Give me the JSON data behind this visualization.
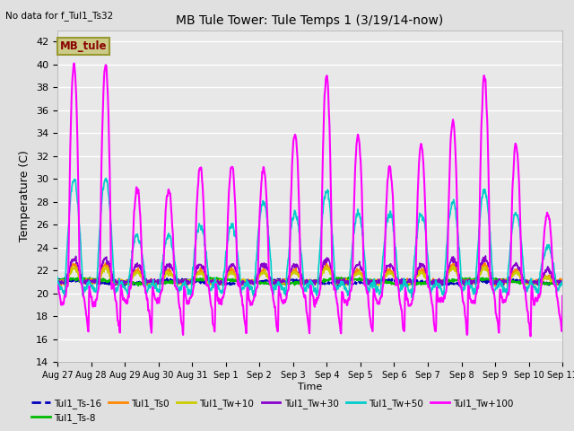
{
  "title": "MB Tule Tower: Tule Temps 1 (3/19/14-now)",
  "no_data_text": "No data for f_Tul1_Ts32",
  "xlabel": "Time",
  "ylabel": "Temperature (C)",
  "ylim": [
    14,
    43
  ],
  "yticks": [
    14,
    16,
    18,
    20,
    22,
    24,
    26,
    28,
    30,
    32,
    34,
    36,
    38,
    40,
    42
  ],
  "x_labels": [
    "Aug 27",
    "Aug 28",
    "Aug 29",
    "Aug 30",
    "Aug 31",
    "Sep 1",
    "Sep 2",
    "Sep 3",
    "Sep 4",
    "Sep 5",
    "Sep 6",
    "Sep 7",
    "Sep 8",
    "Sep 9",
    "Sep 10",
    "Sep 11"
  ],
  "bg_color": "#e0e0e0",
  "plot_bg_color": "#e8e8e8",
  "grid_color": "white",
  "series": [
    {
      "label": "Tul1_Ts-16",
      "color": "#0000bb",
      "lw": 1.5
    },
    {
      "label": "Tul1_Ts-8",
      "color": "#00bb00",
      "lw": 1.2
    },
    {
      "label": "Tul1_Ts0",
      "color": "#ff8800",
      "lw": 1.2
    },
    {
      "label": "Tul1_Tw+10",
      "color": "#cccc00",
      "lw": 1.2
    },
    {
      "label": "Tul1_Tw+30",
      "color": "#8800cc",
      "lw": 1.2
    },
    {
      "label": "Tul1_Tw+50",
      "color": "#00cccc",
      "lw": 1.2
    },
    {
      "label": "Tul1_Tw+100",
      "color": "#ff00ff",
      "lw": 1.5
    }
  ],
  "legend_box_color": "#cccc88",
  "legend_box_text": "MB_tule",
  "legend_box_text_color": "#880000",
  "tw100_peaks": [
    19,
    19,
    8,
    8,
    10,
    10,
    10,
    13,
    18,
    13,
    10,
    12,
    14,
    18,
    12,
    6
  ],
  "tw50_peaks": [
    9,
    9,
    4,
    4,
    5,
    5,
    7,
    6,
    8,
    6,
    6,
    6,
    7,
    8,
    6,
    3
  ],
  "tw30_peaks": [
    2,
    2,
    1.5,
    1.5,
    1.5,
    1.5,
    1.5,
    1.5,
    2,
    1.5,
    1.5,
    1.5,
    2,
    2,
    1.5,
    1
  ],
  "ts0_peaks": [
    1.5,
    1.5,
    1,
    1,
    1,
    1,
    1,
    1,
    1.5,
    1,
    1,
    1,
    1.5,
    1.5,
    1,
    0.5
  ],
  "tw10_peaks": [
    1.2,
    1.2,
    0.8,
    0.8,
    0.8,
    0.8,
    0.8,
    0.8,
    1.2,
    0.8,
    0.8,
    0.8,
    1.2,
    1.2,
    0.8,
    0.4
  ]
}
